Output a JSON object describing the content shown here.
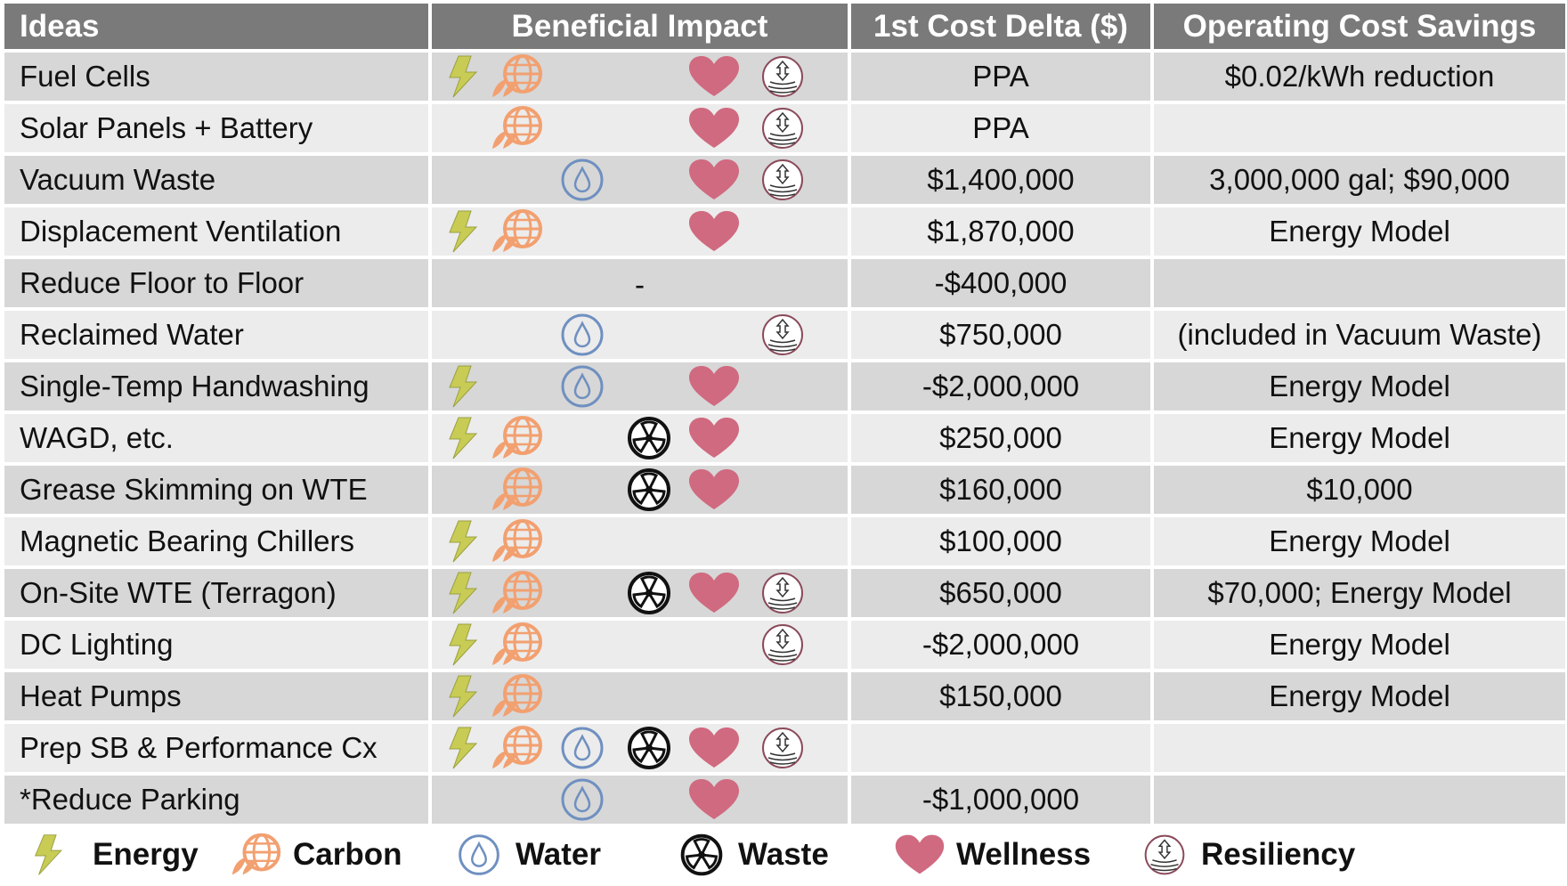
{
  "header": {
    "ideas": "Ideas",
    "impact": "Beneficial Impact",
    "cost_delta": "1st Cost Delta ($)",
    "savings": "Operating Cost Savings"
  },
  "rows": [
    {
      "idea": "Fuel Cells",
      "cost": "PPA",
      "savings": "$0.02/kWh reduction"
    },
    {
      "idea": "Solar Panels + Battery",
      "cost": "PPA",
      "savings": ""
    },
    {
      "idea": "Vacuum Waste",
      "cost": "$1,400,000",
      "savings": "3,000,000 gal; $90,000"
    },
    {
      "idea": "Displacement Ventilation",
      "cost": "$1,870,000",
      "savings": "Energy Model"
    },
    {
      "idea": "Reduce Floor to Floor",
      "impact_text": "-",
      "cost": "-$400,000",
      "savings": ""
    },
    {
      "idea": "Reclaimed Water",
      "cost": "$750,000",
      "savings": "(included in Vacuum Waste)"
    },
    {
      "idea": "Single-Temp Handwashing",
      "cost": "-$2,000,000",
      "savings": "Energy Model"
    },
    {
      "idea": "WAGD, etc.",
      "cost": "$250,000",
      "savings": "Energy Model"
    },
    {
      "idea": "Grease Skimming on WTE",
      "cost": "$160,000",
      "savings": "$10,000"
    },
    {
      "idea": "Magnetic Bearing Chillers",
      "cost": "$100,000",
      "savings": "Energy Model"
    },
    {
      "idea": "On-Site WTE (Terragon)",
      "cost": "$650,000",
      "savings": "$70,000; Energy Model"
    },
    {
      "idea": "DC Lighting",
      "cost": "-$2,000,000",
      "savings": "Energy Model"
    },
    {
      "idea": "Heat Pumps",
      "cost": "$150,000",
      "savings": "Energy Model"
    },
    {
      "idea": "Prep SB & Performance Cx",
      "cost": "",
      "savings": ""
    },
    {
      "idea": "*Reduce Parking",
      "cost": "-$1,000,000",
      "savings": ""
    }
  ],
  "legend": {
    "energy": "Energy",
    "carbon": "Carbon",
    "water": "Water",
    "waste": "Waste",
    "wellness": "Wellness",
    "resiliency": "Resiliency"
  },
  "colors": {
    "header_bg": "#7a7a7a",
    "row_dark": "#d7d7d7",
    "row_light": "#ececec",
    "energy": "#c8cc55",
    "carbon": "#f2a070",
    "water": "#6f90c0",
    "waste": "#111111",
    "wellness": "#d06a80",
    "resiliency": "#8a4a5a"
  }
}
